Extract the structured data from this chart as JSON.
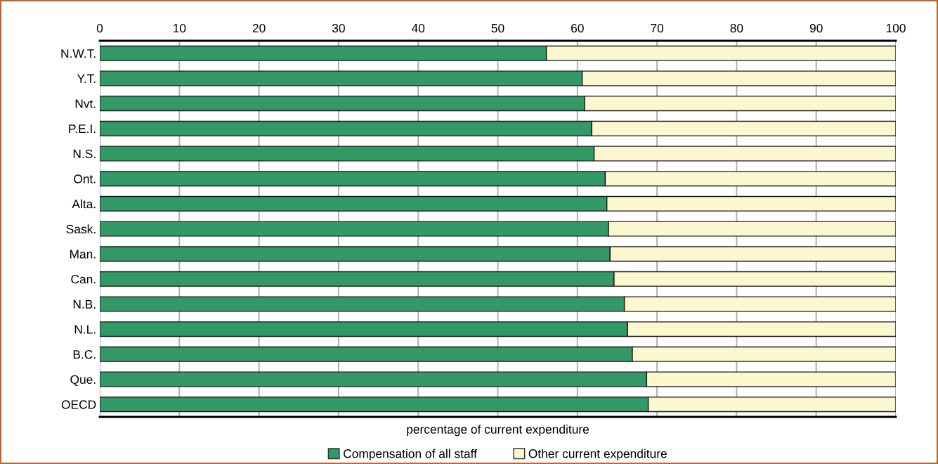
{
  "chart_data": {
    "type": "bar",
    "orientation": "horizontal",
    "stacked": true,
    "xlabel": "percentage of current expenditure",
    "categories": [
      "N.W.T.",
      "Y.T.",
      "Nvt.",
      "P.E.I.",
      "N.S.",
      "Ont.",
      "Alta.",
      "Sask.",
      "Man.",
      "Can.",
      "N.B.",
      "N.L.",
      "B.C.",
      "Que.",
      "OECD"
    ],
    "series": [
      {
        "name": "Compensation of all staff",
        "color": "#339966",
        "values": [
          56.1,
          60.6,
          60.9,
          61.8,
          62.1,
          63.5,
          63.7,
          63.9,
          64.1,
          64.6,
          65.9,
          66.3,
          66.9,
          68.7,
          68.9
        ]
      },
      {
        "name": "Other current expenditure",
        "color": "#fbf8d0",
        "values": [
          43.9,
          39.4,
          39.1,
          38.2,
          37.9,
          36.5,
          36.3,
          36.1,
          35.9,
          35.4,
          34.1,
          33.7,
          33.1,
          31.3,
          31.1
        ]
      }
    ],
    "xlim": [
      0,
      100
    ],
    "xticks": [
      0,
      10,
      20,
      30,
      40,
      50,
      60,
      70,
      80,
      90,
      100
    ],
    "grid": "x",
    "legend": "bottom"
  }
}
